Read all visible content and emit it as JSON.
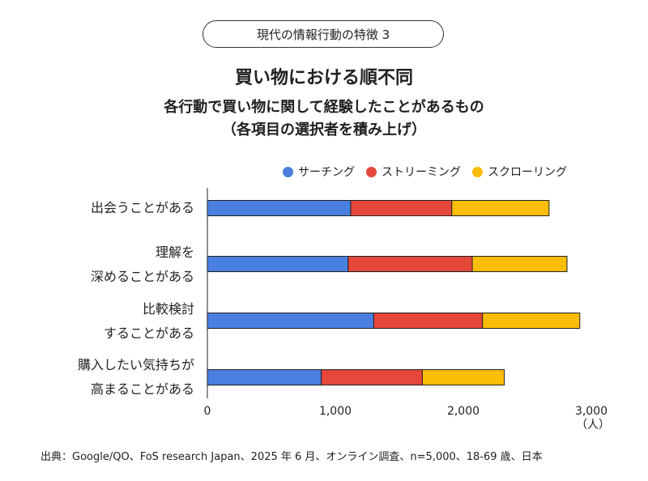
{
  "header": {
    "pill": "現代の情報行動の特徴 3",
    "title": "買い物における順不同",
    "subtitle": "各行動で買い物に関して経験したことがあるもの",
    "subtitle2": "（各項目の選択者を積み上げ）"
  },
  "chart_data": {
    "type": "bar",
    "orientation": "horizontal",
    "stacked": true,
    "categories": [
      [
        "出会うことがある"
      ],
      [
        "理解を",
        "深めることがある"
      ],
      [
        "比較検討",
        "することがある"
      ],
      [
        "購入したい気持ちが",
        "高まることがある"
      ]
    ],
    "series": [
      {
        "name": "サーチング",
        "color": "#4a7fe0",
        "values": [
          1120,
          1100,
          1300,
          890
        ]
      },
      {
        "name": "ストリーミング",
        "color": "#e5473b",
        "values": [
          790,
          970,
          850,
          790
        ]
      },
      {
        "name": "スクローリング",
        "color": "#fbbd08",
        "values": [
          760,
          740,
          760,
          640
        ]
      }
    ],
    "xlim": [
      0,
      3000
    ],
    "xticks": [
      "0",
      "1,000",
      "2,000",
      "3,000"
    ],
    "xtick_values": [
      0,
      1000,
      2000,
      3000
    ],
    "unit": "（人）",
    "legend_position": "top-right",
    "grid": false
  },
  "source": "出典：Google/QO、FoS research Japan、2025 年 6 月、オンライン調査、n=5,000、18-69 歳、日本"
}
